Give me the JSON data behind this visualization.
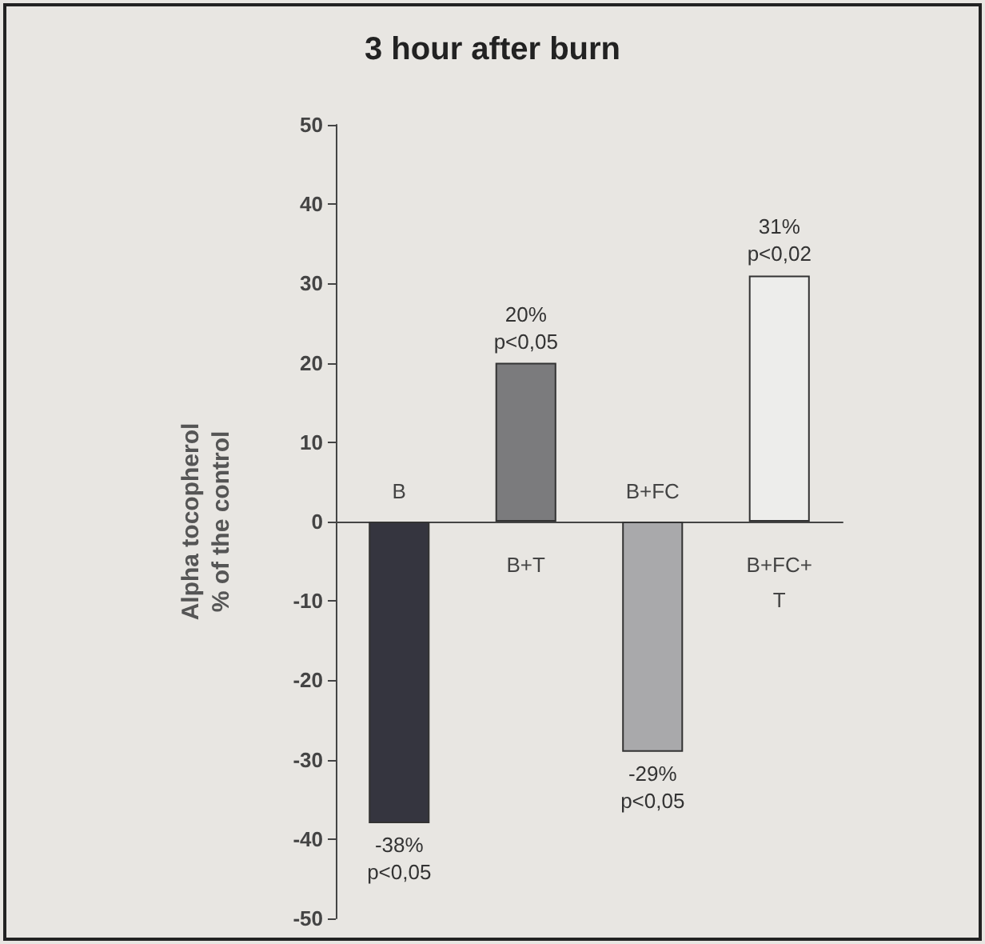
{
  "chart_data": {
    "type": "bar",
    "title": "3 hour after burn",
    "ylabel": "Alpha tocopherol\n% of the control",
    "categories": [
      "B",
      "B+T",
      "B+FC",
      "B+FC+T"
    ],
    "values": [
      -38,
      20,
      -29,
      31
    ],
    "colors": [
      "#35353f",
      "#7b7b7d",
      "#a9a9ab",
      "#ededeb"
    ],
    "value_labels": [
      "-38%\np<0,05",
      "20%\np<0,05",
      "-29%\np<0,05",
      "31%\np<0,02"
    ],
    "ylim": [
      -50,
      50
    ],
    "yticks": [
      -50,
      -40,
      -30,
      -20,
      -10,
      0,
      10,
      20,
      30,
      40,
      50
    ],
    "grid": false
  }
}
